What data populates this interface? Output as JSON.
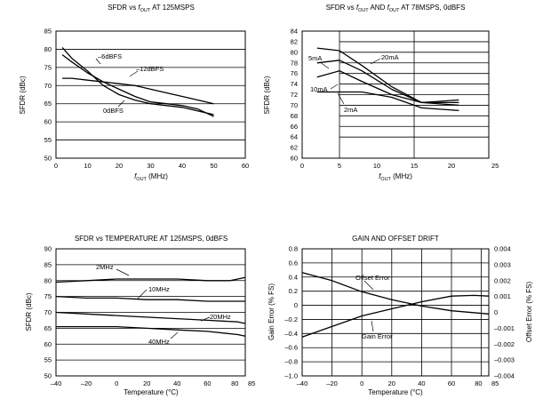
{
  "chart_data": [
    {
      "type": "line",
      "title": "SFDR vs fOUT AT 125MSPS",
      "title_parts": {
        "pre": "SFDR vs ",
        "f": "f",
        "sub": "OUT",
        "post": " AT 125MSPS"
      },
      "xlabel": "fOUT (MHz)",
      "xlabel_parts": {
        "f": "f",
        "sub": "OUT",
        "post": " (MHz)"
      },
      "ylabel": "SFDR (dBc)",
      "xlim": [
        0,
        60
      ],
      "ylim": [
        50,
        85
      ],
      "xticks": [
        "0",
        "10",
        "20",
        "30",
        "40",
        "50",
        "60"
      ],
      "yticks": [
        "50",
        "55",
        "60",
        "65",
        "70",
        "75",
        "80",
        "85"
      ],
      "grid": "horizontal",
      "series": [
        {
          "name": "-6dBFS",
          "x": [
            2,
            5,
            10,
            15,
            20,
            25,
            30,
            35,
            40,
            45,
            50
          ],
          "y": [
            80.5,
            77.5,
            74,
            70,
            67.5,
            66,
            65,
            64.5,
            64,
            63,
            62
          ]
        },
        {
          "name": "-12dBFS",
          "x": [
            2,
            5,
            10,
            15,
            20,
            25,
            30,
            35,
            40,
            45,
            50
          ],
          "y": [
            72,
            72,
            71.5,
            71,
            70.5,
            70,
            69,
            68,
            67,
            66,
            65
          ]
        },
        {
          "name": "0dBFS",
          "x": [
            2,
            5,
            10,
            15,
            20,
            25,
            30,
            35,
            40,
            45,
            50
          ],
          "y": [
            78.5,
            76.5,
            73.5,
            71,
            69,
            67,
            65.5,
            65,
            64.5,
            63.5,
            61.5
          ]
        }
      ],
      "annotations": [
        "–6dBFS",
        "–12dBFS",
        "0dBFS"
      ]
    },
    {
      "type": "line",
      "title": "SFDR vs fOUT AND fOUT AT 78MSPS, 0dBFS",
      "title_parts": {
        "pre": "SFDR vs ",
        "f": "f",
        "sub": "OUT",
        "mid": " AND ",
        "f2": "f",
        "sub2": "OUT",
        "post": " AT 78MSPS, 0dBFS"
      },
      "xlabel": "fOUT (MHz)",
      "xlabel_parts": {
        "f": "f",
        "sub": "OUT",
        "post": " (MHz)"
      },
      "ylabel": "SFDR (dBc)",
      "xlim": [
        0,
        25
      ],
      "ylim": [
        60,
        84
      ],
      "xticks": [
        "0",
        "5",
        "10",
        "15",
        "20",
        "25"
      ],
      "yticks": [
        "60",
        "62",
        "64",
        "66",
        "68",
        "70",
        "72",
        "74",
        "76",
        "78",
        "80",
        "82",
        "84"
      ],
      "grid": "partial",
      "series": [
        {
          "name": "20mA",
          "x": [
            2,
            5,
            8,
            12,
            16,
            21
          ],
          "y": [
            80.8,
            80.3,
            77.5,
            73.5,
            70.5,
            70
          ]
        },
        {
          "name": "5mA",
          "x": [
            2,
            5,
            8,
            12,
            16,
            21
          ],
          "y": [
            78,
            78.5,
            76.5,
            73,
            70.5,
            70.5
          ]
        },
        {
          "name": "10mA",
          "x": [
            2,
            5,
            8,
            12,
            16,
            21
          ],
          "y": [
            75.3,
            76.5,
            74.5,
            72,
            70.5,
            71
          ]
        },
        {
          "name": "2mA",
          "x": [
            2,
            5,
            8,
            12,
            16,
            21
          ],
          "y": [
            72.5,
            72.5,
            72.5,
            71.5,
            69.5,
            69
          ]
        }
      ],
      "annotations": [
        "5mA",
        "20mA",
        "10mA",
        "2mA"
      ]
    },
    {
      "type": "line",
      "title": "SFDR vs TEMPERATURE AT 125MSPS, 0dBFS",
      "xlabel": "Temperature (°C)",
      "ylabel": "SFDR (dBc)",
      "xlim": [
        -40,
        85
      ],
      "ylim": [
        50,
        90
      ],
      "xticks": [
        "–40",
        "–20",
        "0",
        "20",
        "40",
        "60",
        "80",
        "85"
      ],
      "yticks": [
        "50",
        "55",
        "60",
        "65",
        "70",
        "75",
        "80",
        "85",
        "90"
      ],
      "grid": "horizontal",
      "series": [
        {
          "name": "2MHz",
          "x": [
            -40,
            -20,
            0,
            20,
            40,
            60,
            75,
            85
          ],
          "y": [
            79.5,
            80,
            80.5,
            80.5,
            80.5,
            80,
            80,
            81
          ]
        },
        {
          "name": "10MHz",
          "x": [
            -40,
            -20,
            0,
            20,
            40,
            60,
            80,
            85
          ],
          "y": [
            75,
            74.5,
            74.5,
            74,
            74,
            73.5,
            73.5,
            73.5
          ]
        },
        {
          "name": "20MHz",
          "x": [
            -40,
            -20,
            0,
            20,
            40,
            60,
            80,
            85
          ],
          "y": [
            70,
            69.5,
            69,
            68.5,
            68,
            67.5,
            67,
            66.5
          ]
        },
        {
          "name": "40MHz",
          "x": [
            -40,
            -20,
            0,
            20,
            40,
            60,
            80,
            85
          ],
          "y": [
            65.5,
            65.5,
            65.5,
            65,
            64.5,
            64,
            63,
            62.5
          ]
        }
      ],
      "annotations": [
        "2MHz",
        "10MHz",
        "20MHz",
        "40MHz"
      ]
    },
    {
      "type": "line",
      "title": "GAIN AND OFFSET DRIFT",
      "xlabel": "Temperature (°C)",
      "ylabel": "Gain Error (% FS)",
      "ylabel_right": "Offset Error (% FS)",
      "xlim": [
        -40,
        85
      ],
      "ylim": [
        -1.0,
        0.8
      ],
      "ylim_right": [
        -0.004,
        0.004
      ],
      "xticks": [
        "–40",
        "–20",
        "0",
        "20",
        "40",
        "60",
        "80",
        "85"
      ],
      "yticks": [
        "–1.0",
        "–0.8",
        "–0.6",
        "–0.4",
        "–0.2",
        "0",
        "0.2",
        "0.4",
        "0.6",
        "0.8"
      ],
      "yticks_right": [
        "–0.004",
        "–0.003",
        "–0.002",
        "–0.001",
        "0",
        "0.001",
        "0.002",
        "0.003",
        "0.004"
      ],
      "grid": "both",
      "series": [
        {
          "name": "Offset Error",
          "axis": "right",
          "x": [
            -40,
            -20,
            0,
            20,
            40,
            60,
            85
          ],
          "y": [
            0.0025,
            0.002,
            0.0013,
            0.0008,
            0.0004,
            0.0001,
            -0.0001
          ]
        },
        {
          "name": "Gain Error",
          "axis": "left",
          "x": [
            -40,
            -20,
            0,
            20,
            40,
            60,
            75,
            85
          ],
          "y": [
            -0.45,
            -0.3,
            -0.15,
            -0.05,
            0.05,
            0.13,
            0.14,
            0.13
          ]
        }
      ],
      "annotations": [
        "Offset Error",
        "Gain Error"
      ]
    }
  ]
}
